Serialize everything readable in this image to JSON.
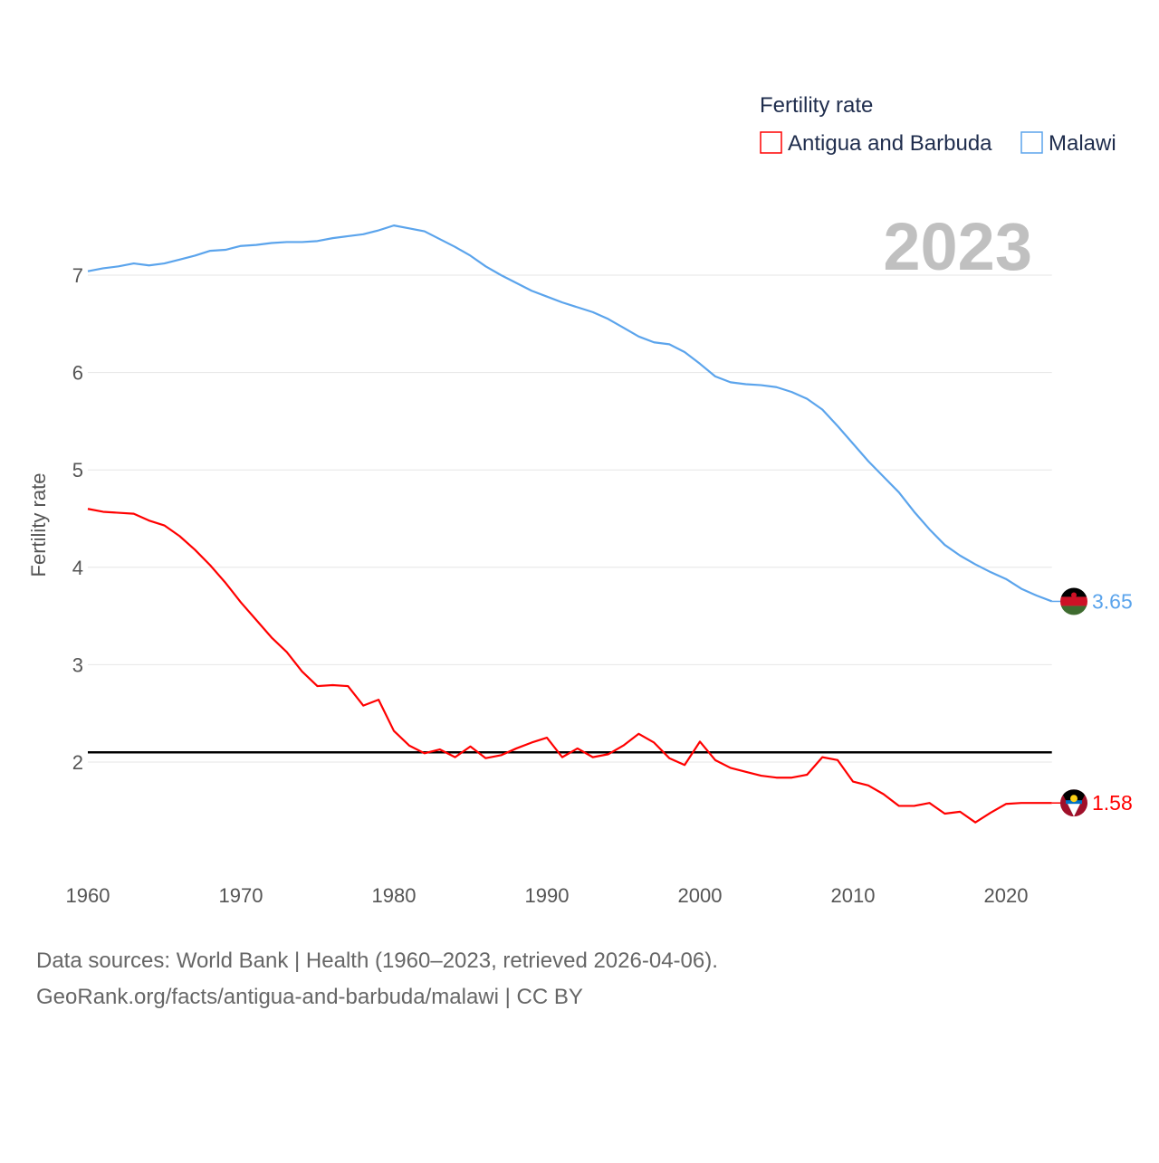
{
  "chart_data": {
    "type": "line",
    "title": "Fertility rate",
    "ylabel": "Fertility rate",
    "xlabel": "",
    "year_label": "2023",
    "xlim": [
      1960,
      2023
    ],
    "ylim": [
      1,
      7.6
    ],
    "yticks": [
      2,
      3,
      4,
      5,
      6,
      7
    ],
    "xticks": [
      1960,
      1970,
      1980,
      1990,
      2000,
      2010,
      2020
    ],
    "grid": true,
    "legend_placement": "top-right",
    "reference_line": {
      "value": 2.1,
      "color": "#000000"
    },
    "x_start": 1960,
    "series": [
      {
        "name": "Antigua and Barbuda",
        "color": "#ff0000",
        "end_label": "1.58",
        "values": [
          4.6,
          4.57,
          4.56,
          4.55,
          4.48,
          4.43,
          4.32,
          4.18,
          4.02,
          3.84,
          3.64,
          3.46,
          3.28,
          3.13,
          2.93,
          2.78,
          2.79,
          2.78,
          2.58,
          2.64,
          2.32,
          2.17,
          2.09,
          2.13,
          2.05,
          2.16,
          2.04,
          2.07,
          2.14,
          2.2,
          2.25,
          2.05,
          2.14,
          2.05,
          2.08,
          2.17,
          2.29,
          2.2,
          2.04,
          1.97,
          2.21,
          2.02,
          1.94,
          1.9,
          1.86,
          1.84,
          1.84,
          1.87,
          2.05,
          2.02,
          1.8,
          1.76,
          1.67,
          1.55,
          1.55,
          1.58,
          1.47,
          1.49,
          1.38,
          1.48,
          1.57,
          1.58,
          1.58,
          1.58
        ]
      },
      {
        "name": "Malawi",
        "color": "#5ba4ec",
        "end_label": "3.65",
        "values": [
          7.04,
          7.07,
          7.09,
          7.12,
          7.1,
          7.12,
          7.16,
          7.2,
          7.25,
          7.26,
          7.3,
          7.31,
          7.33,
          7.34,
          7.34,
          7.35,
          7.38,
          7.4,
          7.42,
          7.46,
          7.51,
          7.48,
          7.45,
          7.37,
          7.29,
          7.2,
          7.09,
          7.0,
          6.92,
          6.84,
          6.78,
          6.72,
          6.67,
          6.62,
          6.55,
          6.46,
          6.37,
          6.31,
          6.29,
          6.21,
          6.09,
          5.96,
          5.9,
          5.88,
          5.87,
          5.85,
          5.8,
          5.73,
          5.62,
          5.45,
          5.27,
          5.09,
          4.93,
          4.77,
          4.57,
          4.39,
          4.23,
          4.12,
          4.03,
          3.95,
          3.88,
          3.78,
          3.71,
          3.65
        ]
      }
    ]
  },
  "footer": {
    "line1": "Data sources: World Bank | Health (1960–2023, retrieved 2026-04-06).",
    "line2": "GeoRank.org/facts/antigua-and-barbuda/malawi | CC BY"
  }
}
